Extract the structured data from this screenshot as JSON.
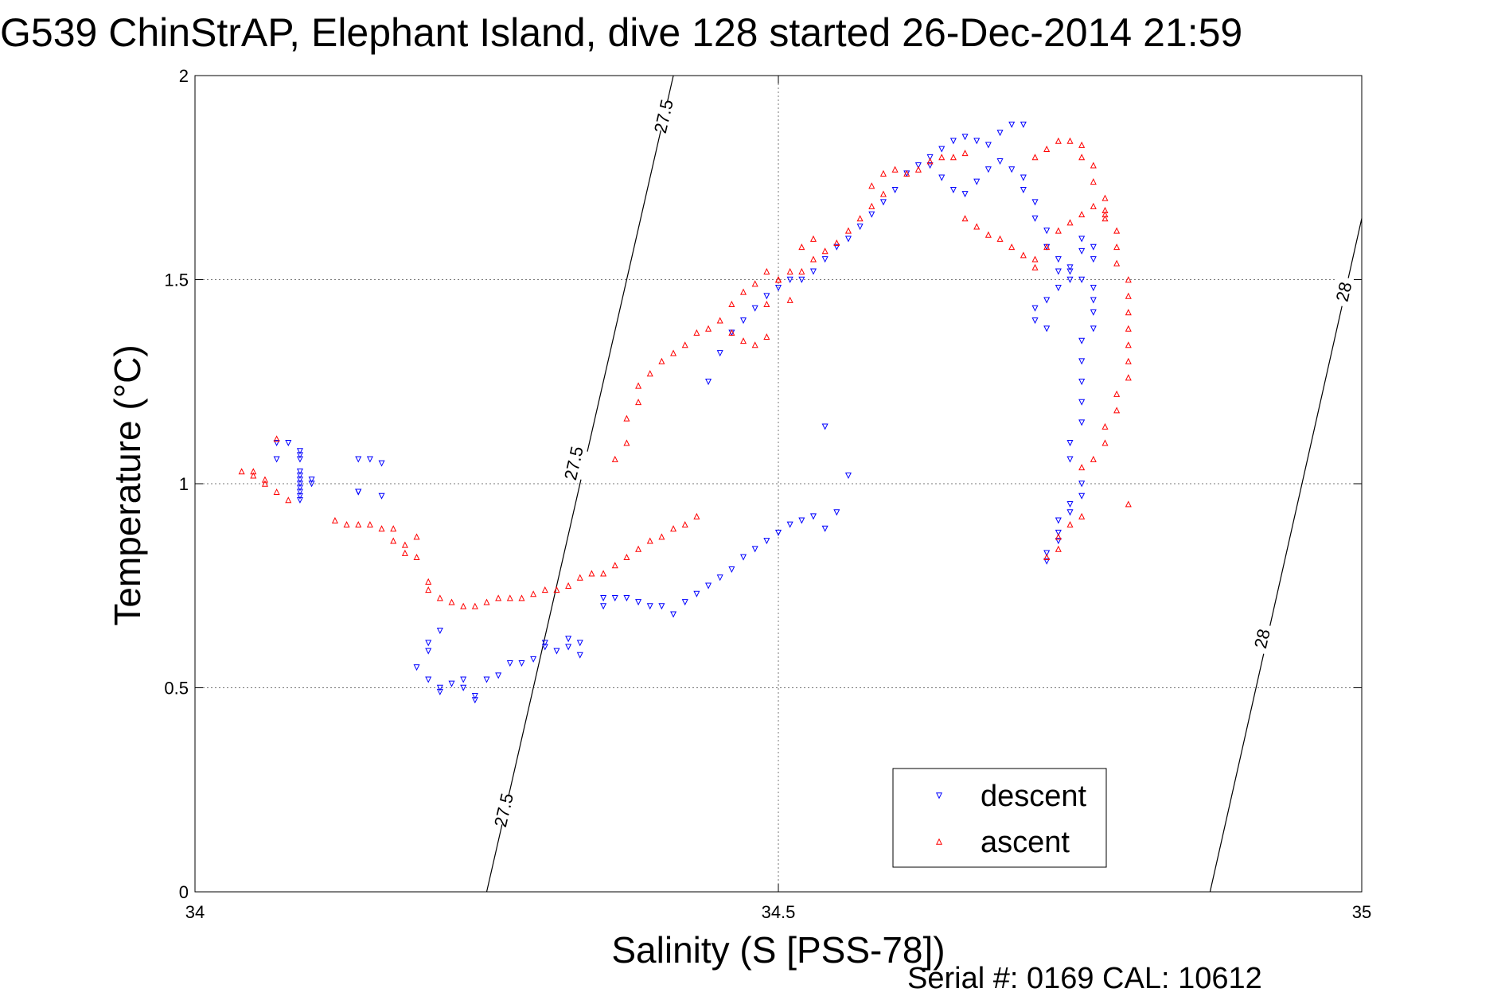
{
  "chart_data": {
    "type": "scatter",
    "title": "G539 ChinStrAP, Elephant Island, dive 128 started 26-Dec-2014 21:59",
    "xlabel": "Salinity (S [PSS-78])",
    "ylabel": "Temperature (°C)",
    "footer": "Serial #: 0169 CAL: 10612",
    "xlim": [
      34,
      35
    ],
    "ylim": [
      0,
      2
    ],
    "xticks": [
      34,
      34.5,
      35
    ],
    "xtick_labels": [
      "34",
      "34.5",
      "35"
    ],
    "yticks": [
      0,
      0.5,
      1,
      1.5,
      2
    ],
    "ytick_labels": [
      "0",
      "0.5",
      "1",
      "1.5",
      "2"
    ],
    "grid": true,
    "legend_position": "bottom-right",
    "density_contours": [
      {
        "label": "27.5",
        "points": [
          [
            34.25,
            0
          ],
          [
            34.41,
            2
          ]
        ],
        "label_positions": [
          [
            34.265,
            0.2
          ],
          [
            34.325,
            1.05
          ],
          [
            34.402,
            1.9
          ]
        ]
      },
      {
        "label": "28",
        "points": [
          [
            34.87,
            0
          ],
          [
            35,
            1.65
          ]
        ],
        "label_positions": [
          [
            34.915,
            0.62
          ],
          [
            34.985,
            1.47
          ]
        ]
      }
    ],
    "series": [
      {
        "name": "descent",
        "color": "#0000ff",
        "marker": "triangle-down",
        "points": [
          [
            34.07,
            1.1
          ],
          [
            34.08,
            1.1
          ],
          [
            34.09,
            1.01
          ],
          [
            34.09,
            1.0
          ],
          [
            34.09,
            0.98
          ],
          [
            34.09,
            0.97
          ],
          [
            34.1,
            1.0
          ],
          [
            34.1,
            1.01
          ],
          [
            34.09,
            1.02
          ],
          [
            34.09,
            0.96
          ],
          [
            34.09,
            0.99
          ],
          [
            34.07,
            1.06
          ],
          [
            34.09,
            1.06
          ],
          [
            34.09,
            1.08
          ],
          [
            34.09,
            1.07
          ],
          [
            34.09,
            1.03
          ],
          [
            34.14,
            0.98
          ],
          [
            34.14,
            0.98
          ],
          [
            34.14,
            0.98
          ],
          [
            34.14,
            1.06
          ],
          [
            34.15,
            1.06
          ],
          [
            34.16,
            0.97
          ],
          [
            34.16,
            1.05
          ],
          [
            34.19,
            0.55
          ],
          [
            34.2,
            0.59
          ],
          [
            34.2,
            0.61
          ],
          [
            34.21,
            0.64
          ],
          [
            34.2,
            0.52
          ],
          [
            34.21,
            0.5
          ],
          [
            34.21,
            0.49
          ],
          [
            34.22,
            0.51
          ],
          [
            34.23,
            0.52
          ],
          [
            34.23,
            0.5
          ],
          [
            34.24,
            0.48
          ],
          [
            34.24,
            0.47
          ],
          [
            34.25,
            0.52
          ],
          [
            34.26,
            0.53
          ],
          [
            34.27,
            0.56
          ],
          [
            34.28,
            0.56
          ],
          [
            34.29,
            0.57
          ],
          [
            34.3,
            0.6
          ],
          [
            34.3,
            0.61
          ],
          [
            34.31,
            0.59
          ],
          [
            34.32,
            0.6
          ],
          [
            34.33,
            0.61
          ],
          [
            34.32,
            0.62
          ],
          [
            34.33,
            0.58
          ],
          [
            34.35,
            0.7
          ],
          [
            34.35,
            0.72
          ],
          [
            34.36,
            0.72
          ],
          [
            34.37,
            0.72
          ],
          [
            34.38,
            0.71
          ],
          [
            34.39,
            0.7
          ],
          [
            34.4,
            0.7
          ],
          [
            34.41,
            0.68
          ],
          [
            34.42,
            0.71
          ],
          [
            34.43,
            0.73
          ],
          [
            34.44,
            0.75
          ],
          [
            34.45,
            0.77
          ],
          [
            34.46,
            0.79
          ],
          [
            34.47,
            0.82
          ],
          [
            34.48,
            0.84
          ],
          [
            34.49,
            0.86
          ],
          [
            34.5,
            0.88
          ],
          [
            34.51,
            0.9
          ],
          [
            34.52,
            0.91
          ],
          [
            34.53,
            0.92
          ],
          [
            34.54,
            0.89
          ],
          [
            34.55,
            0.93
          ],
          [
            34.56,
            1.02
          ],
          [
            34.54,
            1.14
          ],
          [
            34.44,
            1.25
          ],
          [
            34.45,
            1.32
          ],
          [
            34.46,
            1.37
          ],
          [
            34.47,
            1.4
          ],
          [
            34.48,
            1.43
          ],
          [
            34.49,
            1.46
          ],
          [
            34.5,
            1.48
          ],
          [
            34.51,
            1.5
          ],
          [
            34.52,
            1.5
          ],
          [
            34.53,
            1.52
          ],
          [
            34.54,
            1.55
          ],
          [
            34.55,
            1.58
          ],
          [
            34.56,
            1.6
          ],
          [
            34.57,
            1.63
          ],
          [
            34.58,
            1.66
          ],
          [
            34.59,
            1.69
          ],
          [
            34.6,
            1.72
          ],
          [
            34.61,
            1.76
          ],
          [
            34.62,
            1.78
          ],
          [
            34.63,
            1.8
          ],
          [
            34.64,
            1.82
          ],
          [
            34.65,
            1.84
          ],
          [
            34.66,
            1.85
          ],
          [
            34.67,
            1.84
          ],
          [
            34.68,
            1.83
          ],
          [
            34.69,
            1.86
          ],
          [
            34.7,
            1.88
          ],
          [
            34.71,
            1.88
          ],
          [
            34.63,
            1.78
          ],
          [
            34.64,
            1.75
          ],
          [
            34.65,
            1.72
          ],
          [
            34.66,
            1.71
          ],
          [
            34.67,
            1.74
          ],
          [
            34.68,
            1.77
          ],
          [
            34.69,
            1.79
          ],
          [
            34.7,
            1.77
          ],
          [
            34.71,
            1.75
          ],
          [
            34.71,
            1.72
          ],
          [
            34.72,
            1.69
          ],
          [
            34.72,
            1.65
          ],
          [
            34.73,
            1.62
          ],
          [
            34.73,
            1.58
          ],
          [
            34.74,
            1.55
          ],
          [
            34.74,
            1.52
          ],
          [
            34.75,
            1.5
          ],
          [
            34.75,
            1.53
          ],
          [
            34.76,
            1.57
          ],
          [
            34.76,
            1.6
          ],
          [
            34.77,
            1.58
          ],
          [
            34.77,
            1.55
          ],
          [
            34.72,
            1.43
          ],
          [
            34.72,
            1.4
          ],
          [
            34.73,
            1.38
          ],
          [
            34.73,
            1.45
          ],
          [
            34.74,
            1.48
          ],
          [
            34.75,
            1.52
          ],
          [
            34.76,
            1.5
          ],
          [
            34.77,
            1.48
          ],
          [
            34.77,
            1.45
          ],
          [
            34.77,
            1.42
          ],
          [
            34.77,
            1.38
          ],
          [
            34.76,
            1.35
          ],
          [
            34.76,
            1.3
          ],
          [
            34.76,
            1.25
          ],
          [
            34.76,
            1.2
          ],
          [
            34.76,
            1.15
          ],
          [
            34.75,
            1.1
          ],
          [
            34.75,
            1.06
          ],
          [
            34.73,
            0.81
          ],
          [
            34.73,
            0.83
          ],
          [
            34.74,
            0.86
          ],
          [
            34.74,
            0.88
          ],
          [
            34.74,
            0.91
          ],
          [
            34.75,
            0.93
          ],
          [
            34.75,
            0.95
          ],
          [
            34.76,
            0.97
          ],
          [
            34.76,
            1.0
          ]
        ]
      },
      {
        "name": "ascent",
        "color": "#ff0000",
        "marker": "triangle-up",
        "points": [
          [
            34.04,
            1.03
          ],
          [
            34.05,
            1.03
          ],
          [
            34.05,
            1.02
          ],
          [
            34.06,
            1.01
          ],
          [
            34.06,
            1.0
          ],
          [
            34.07,
            0.98
          ],
          [
            34.08,
            0.96
          ],
          [
            34.07,
            1.11
          ],
          [
            34.12,
            0.91
          ],
          [
            34.13,
            0.9
          ],
          [
            34.14,
            0.9
          ],
          [
            34.15,
            0.9
          ],
          [
            34.16,
            0.89
          ],
          [
            34.17,
            0.89
          ],
          [
            34.17,
            0.86
          ],
          [
            34.18,
            0.85
          ],
          [
            34.18,
            0.83
          ],
          [
            34.19,
            0.82
          ],
          [
            34.19,
            0.87
          ],
          [
            34.2,
            0.76
          ],
          [
            34.2,
            0.74
          ],
          [
            34.21,
            0.72
          ],
          [
            34.22,
            0.71
          ],
          [
            34.23,
            0.7
          ],
          [
            34.24,
            0.7
          ],
          [
            34.25,
            0.71
          ],
          [
            34.26,
            0.72
          ],
          [
            34.27,
            0.72
          ],
          [
            34.28,
            0.72
          ],
          [
            34.29,
            0.73
          ],
          [
            34.3,
            0.74
          ],
          [
            34.31,
            0.74
          ],
          [
            34.32,
            0.75
          ],
          [
            34.33,
            0.77
          ],
          [
            34.34,
            0.78
          ],
          [
            34.35,
            0.78
          ],
          [
            34.36,
            0.8
          ],
          [
            34.37,
            0.82
          ],
          [
            34.38,
            0.84
          ],
          [
            34.39,
            0.86
          ],
          [
            34.4,
            0.87
          ],
          [
            34.41,
            0.89
          ],
          [
            34.42,
            0.9
          ],
          [
            34.43,
            0.92
          ],
          [
            34.36,
            1.06
          ],
          [
            34.37,
            1.1
          ],
          [
            34.37,
            1.16
          ],
          [
            34.38,
            1.2
          ],
          [
            34.38,
            1.24
          ],
          [
            34.39,
            1.27
          ],
          [
            34.4,
            1.3
          ],
          [
            34.41,
            1.32
          ],
          [
            34.42,
            1.34
          ],
          [
            34.43,
            1.37
          ],
          [
            34.44,
            1.38
          ],
          [
            34.45,
            1.4
          ],
          [
            34.46,
            1.44
          ],
          [
            34.47,
            1.47
          ],
          [
            34.48,
            1.49
          ],
          [
            34.49,
            1.52
          ],
          [
            34.5,
            1.5
          ],
          [
            34.51,
            1.52
          ],
          [
            34.52,
            1.52
          ],
          [
            34.53,
            1.55
          ],
          [
            34.54,
            1.57
          ],
          [
            34.55,
            1.59
          ],
          [
            34.56,
            1.62
          ],
          [
            34.57,
            1.65
          ],
          [
            34.58,
            1.68
          ],
          [
            34.59,
            1.71
          ],
          [
            34.46,
            1.37
          ],
          [
            34.47,
            1.35
          ],
          [
            34.48,
            1.34
          ],
          [
            34.49,
            1.36
          ],
          [
            34.49,
            1.44
          ],
          [
            34.5,
            1.5
          ],
          [
            34.51,
            1.45
          ],
          [
            34.52,
            1.58
          ],
          [
            34.53,
            1.6
          ],
          [
            34.58,
            1.73
          ],
          [
            34.59,
            1.76
          ],
          [
            34.6,
            1.77
          ],
          [
            34.61,
            1.76
          ],
          [
            34.62,
            1.77
          ],
          [
            34.63,
            1.79
          ],
          [
            34.64,
            1.8
          ],
          [
            34.65,
            1.8
          ],
          [
            34.66,
            1.81
          ],
          [
            34.66,
            1.65
          ],
          [
            34.67,
            1.63
          ],
          [
            34.68,
            1.61
          ],
          [
            34.69,
            1.6
          ],
          [
            34.7,
            1.58
          ],
          [
            34.71,
            1.56
          ],
          [
            34.72,
            1.53
          ],
          [
            34.72,
            1.55
          ],
          [
            34.73,
            1.58
          ],
          [
            34.74,
            1.62
          ],
          [
            34.75,
            1.64
          ],
          [
            34.76,
            1.66
          ],
          [
            34.77,
            1.68
          ],
          [
            34.78,
            1.67
          ],
          [
            34.78,
            1.65
          ],
          [
            34.72,
            1.8
          ],
          [
            34.73,
            1.82
          ],
          [
            34.74,
            1.84
          ],
          [
            34.75,
            1.84
          ],
          [
            34.76,
            1.83
          ],
          [
            34.76,
            1.8
          ],
          [
            34.77,
            1.78
          ],
          [
            34.77,
            1.74
          ],
          [
            34.78,
            1.7
          ],
          [
            34.78,
            1.66
          ],
          [
            34.79,
            1.62
          ],
          [
            34.79,
            1.58
          ],
          [
            34.79,
            1.54
          ],
          [
            34.8,
            1.5
          ],
          [
            34.8,
            1.46
          ],
          [
            34.8,
            1.42
          ],
          [
            34.8,
            1.38
          ],
          [
            34.8,
            1.34
          ],
          [
            34.8,
            1.3
          ],
          [
            34.8,
            1.26
          ],
          [
            34.79,
            1.22
          ],
          [
            34.79,
            1.18
          ],
          [
            34.78,
            1.14
          ],
          [
            34.78,
            1.1
          ],
          [
            34.77,
            1.06
          ],
          [
            34.76,
            1.04
          ],
          [
            34.73,
            0.82
          ],
          [
            34.74,
            0.84
          ],
          [
            34.74,
            0.87
          ],
          [
            34.75,
            0.9
          ],
          [
            34.76,
            0.92
          ],
          [
            34.8,
            0.95
          ]
        ]
      }
    ]
  }
}
